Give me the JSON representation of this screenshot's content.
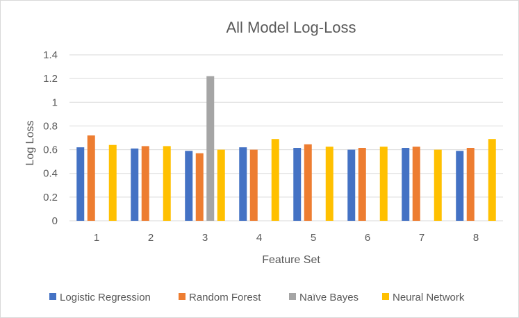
{
  "chart_data": {
    "type": "bar",
    "title": "All Model Log-Loss",
    "xlabel": "Feature Set",
    "ylabel": "Log Loss",
    "ylim": [
      0,
      1.4
    ],
    "yticks": [
      "0",
      "0.2",
      "0.4",
      "0.6",
      "0.8",
      "1",
      "1.2",
      "1.4"
    ],
    "categories": [
      "1",
      "2",
      "3",
      "4",
      "5",
      "6",
      "7",
      "8"
    ],
    "grid": true,
    "legend_position": "bottom",
    "series": [
      {
        "name": "Logistic Regression",
        "color": "#4472C4",
        "values": [
          0.62,
          0.61,
          0.59,
          0.62,
          0.615,
          0.6,
          0.615,
          0.59
        ]
      },
      {
        "name": "Random Forest",
        "color": "#ED7D31",
        "values": [
          0.72,
          0.63,
          0.57,
          0.6,
          0.645,
          0.615,
          0.625,
          0.615
        ]
      },
      {
        "name": "Naïve Bayes",
        "color": "#A5A5A5",
        "values": [
          null,
          null,
          1.22,
          null,
          null,
          null,
          null,
          null
        ]
      },
      {
        "name": "Neural Network",
        "color": "#FFC000",
        "values": [
          0.64,
          0.63,
          0.6,
          0.69,
          0.625,
          0.625,
          0.6,
          0.69
        ]
      }
    ]
  }
}
